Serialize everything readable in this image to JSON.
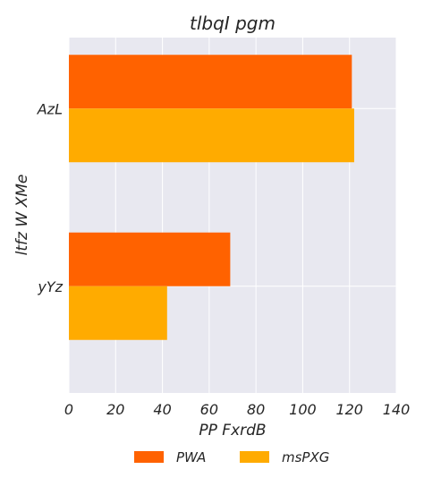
{
  "chart_data": {
    "type": "bar",
    "orientation": "horizontal",
    "title": "tlbqI pgm",
    "xlabel": "PP FxrdB",
    "ylabel": "ltfz W XMe",
    "categories": [
      "AzL",
      "yYz"
    ],
    "series": [
      {
        "name": "PWA",
        "values": [
          121,
          69
        ]
      },
      {
        "name": "msPXG",
        "values": [
          122,
          42
        ]
      }
    ],
    "xlim": [
      0,
      140
    ],
    "xticks": [
      0,
      20,
      40,
      60,
      80,
      100,
      120,
      140
    ],
    "grid": true,
    "legend": {
      "position": "bottom-center"
    },
    "colors": {
      "series": [
        "#ff6200",
        "#ffab00"
      ],
      "plot_background": "#e8e8f0",
      "grid": "#ffffff"
    }
  }
}
